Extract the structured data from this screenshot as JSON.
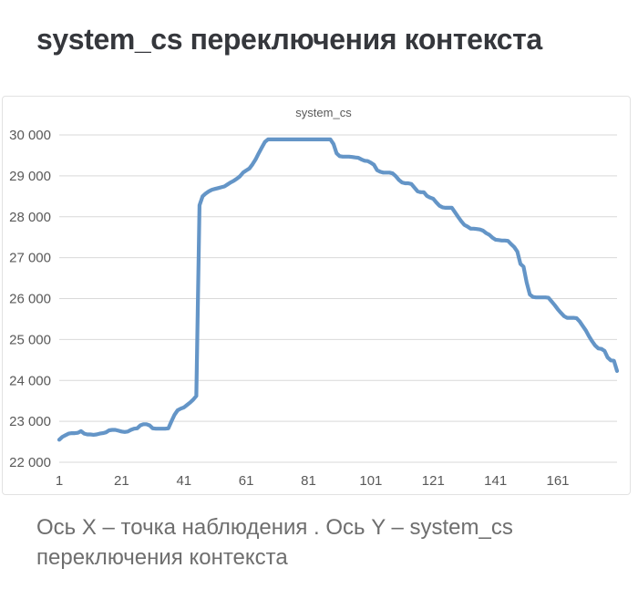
{
  "page": {
    "title": "system_cs переключения контекста",
    "caption_line1": "Ось X – точка наблюдения . Ось Y – system_cs",
    "caption_line2": "переключения контекста"
  },
  "colors": {
    "line": "#6495c7",
    "grid": "#d9d9d9",
    "tick_text": "#595959",
    "title_text": "#35373c",
    "caption_text": "#6e6e6e",
    "panel_border": "#e2e2e2"
  },
  "chart_data": {
    "type": "line",
    "title": "system_cs",
    "xlabel": "точка наблюдения",
    "ylabel": "system_cs переключения контекста",
    "x_start": 1,
    "x_ticks": [
      1,
      21,
      41,
      61,
      81,
      101,
      121,
      141,
      161
    ],
    "y_ticks": [
      22000,
      23000,
      24000,
      25000,
      26000,
      27000,
      28000,
      29000,
      30000
    ],
    "ylim": [
      22000,
      30000
    ],
    "xlim": [
      1,
      180
    ],
    "grid": true,
    "legend_position": "top-center",
    "series": [
      {
        "name": "system_cs",
        "values": [
          22550,
          22620,
          22660,
          22700,
          22710,
          22710,
          22720,
          22760,
          22700,
          22680,
          22680,
          22670,
          22680,
          22700,
          22710,
          22730,
          22780,
          22790,
          22790,
          22770,
          22750,
          22740,
          22750,
          22790,
          22820,
          22830,
          22900,
          22930,
          22930,
          22900,
          22830,
          22820,
          22820,
          22820,
          22820,
          22830,
          23000,
          23160,
          23270,
          23310,
          23340,
          23400,
          23460,
          23530,
          23620,
          28280,
          28500,
          28570,
          28620,
          28660,
          28680,
          28700,
          28720,
          28740,
          28790,
          28840,
          28880,
          28930,
          28990,
          29080,
          29130,
          29180,
          29280,
          29400,
          29550,
          29690,
          29830,
          29890,
          29890,
          29890,
          29890,
          29890,
          29890,
          29890,
          29890,
          29890,
          29890,
          29890,
          29890,
          29890,
          29890,
          29890,
          29890,
          29890,
          29890,
          29890,
          29890,
          29890,
          29780,
          29550,
          29480,
          29470,
          29470,
          29470,
          29460,
          29450,
          29440,
          29400,
          29370,
          29360,
          29320,
          29270,
          29140,
          29100,
          29080,
          29080,
          29080,
          29060,
          28990,
          28900,
          28840,
          28820,
          28820,
          28800,
          28710,
          28620,
          28600,
          28600,
          28510,
          28470,
          28440,
          28350,
          28270,
          28230,
          28220,
          28220,
          28220,
          28110,
          28000,
          27890,
          27800,
          27760,
          27710,
          27710,
          27700,
          27690,
          27660,
          27600,
          27560,
          27490,
          27440,
          27430,
          27420,
          27420,
          27410,
          27330,
          27260,
          27150,
          26850,
          26780,
          26400,
          26100,
          26040,
          26030,
          26030,
          26030,
          26030,
          26020,
          25930,
          25840,
          25740,
          25650,
          25570,
          25530,
          25530,
          25530,
          25520,
          25440,
          25330,
          25220,
          25080,
          24960,
          24850,
          24780,
          24770,
          24720,
          24560,
          24490,
          24480,
          24230
        ]
      }
    ]
  }
}
